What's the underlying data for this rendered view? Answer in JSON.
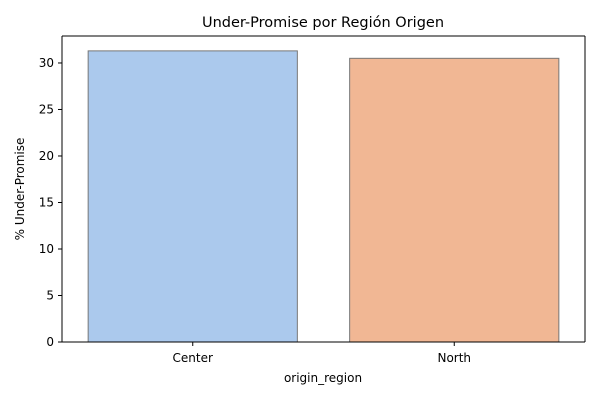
{
  "chart_data": {
    "type": "bar",
    "title": "Under-Promise por Región Origen",
    "xlabel": "origin_region",
    "ylabel": "% Under-Promise",
    "categories": [
      "Center",
      "North"
    ],
    "values": [
      31.3,
      30.5
    ],
    "colors": [
      "#abc9ed",
      "#f1b794"
    ],
    "edge_color": "#777777",
    "ylim": [
      0,
      32.9
    ],
    "yticks": [
      0,
      5,
      10,
      15,
      20,
      25,
      30
    ],
    "grid": false,
    "legend": "none"
  }
}
